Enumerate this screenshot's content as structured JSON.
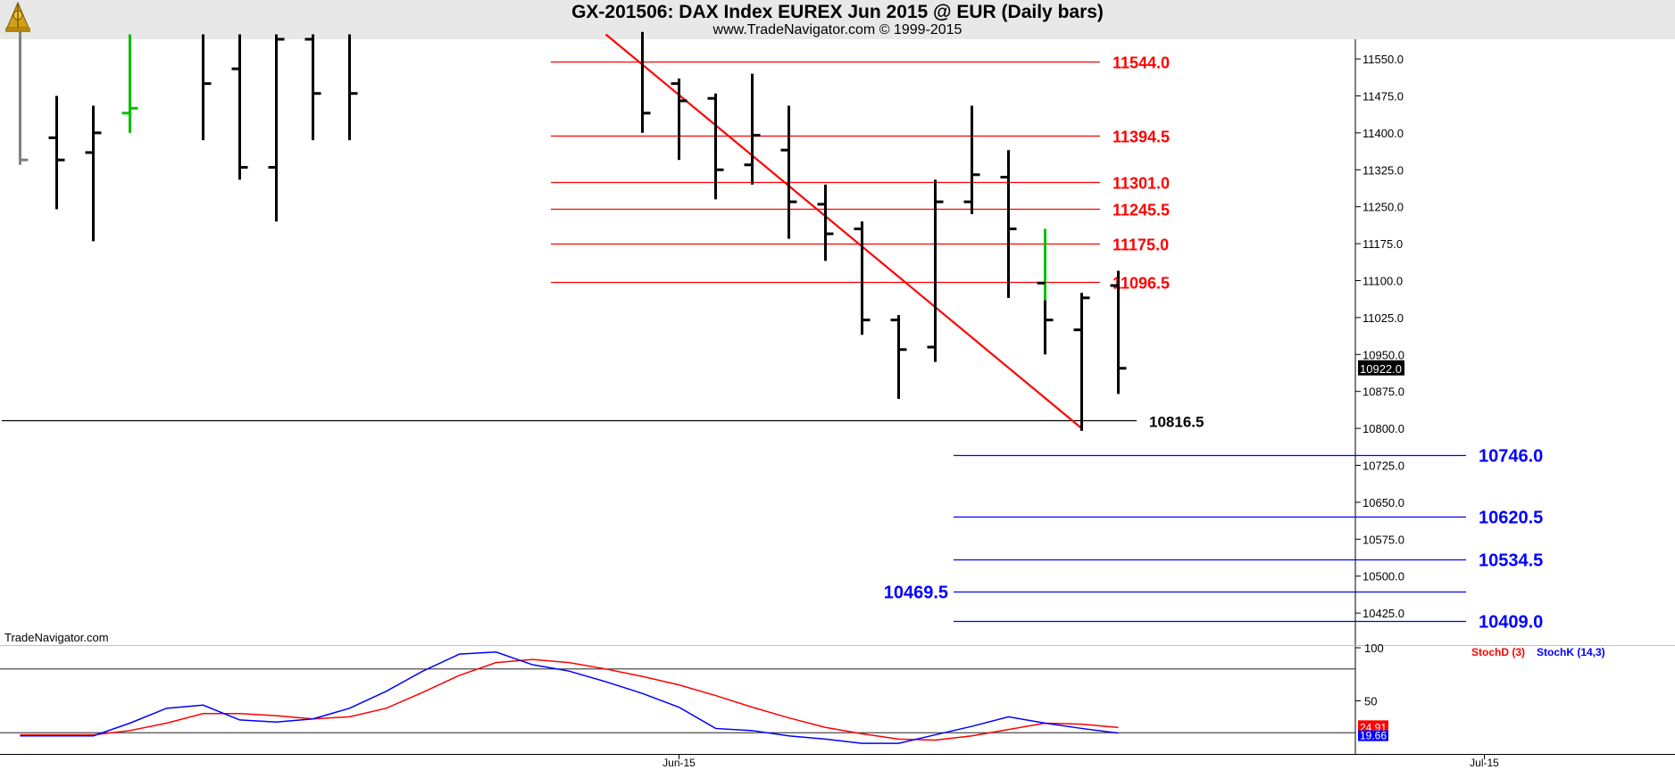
{
  "header": {
    "title": "GX-201506:  DAX Index EUREX Jun 2015 @ EUR  (Daily bars)",
    "subtitle": "www.TradeNavigator.com © 1999-2015"
  },
  "watermark": "TradeNavigator.com",
  "colors": {
    "background": "#ffffff",
    "header_bg": "#e8e8e8",
    "bar": "#000000",
    "up_bar": "#00c000",
    "red_level": "#ff0000",
    "blue_level": "#0000ff",
    "black_level": "#000000",
    "trendline": "#ff0000",
    "stoch_d": "#ff0000",
    "stoch_k": "#0000ff"
  },
  "logo_icon": "trade-navigator-logo-icon",
  "chart_data": [
    {
      "type": "ohlc",
      "ylim": [
        10360,
        11590
      ],
      "y_ticks": [
        "11550.0",
        "11475.0",
        "11400.0",
        "11325.0",
        "11250.0",
        "11175.0",
        "11100.0",
        "11025.0",
        "10950.0",
        "10875.0",
        "10800.0",
        "10725.0",
        "10650.0",
        "10575.0",
        "10500.0",
        "10425.0"
      ],
      "x_labels": [
        {
          "label": "Jun-15",
          "index": 18
        },
        {
          "label": "Jul-15",
          "index": 40
        }
      ],
      "last_price": "10922.0",
      "bars": [
        {
          "i": 0,
          "h": 11605,
          "l": 11335,
          "c": 11345,
          "color": "gray"
        },
        {
          "i": 1,
          "h": 11475,
          "l": 11245,
          "o": 11390,
          "c": 11345
        },
        {
          "i": 2,
          "h": 11455,
          "l": 11180,
          "o": 11360,
          "c": 11400
        },
        {
          "i": 3,
          "h": 11600,
          "l": 11400,
          "o": 11440,
          "c": 11450,
          "color": "green"
        },
        {
          "i": 5,
          "h": 11600,
          "l": 11385,
          "c": 11500
        },
        {
          "i": 6,
          "h": 11600,
          "l": 11305,
          "o": 11530,
          "c": 11330
        },
        {
          "i": 7,
          "h": 11600,
          "l": 11220,
          "o": 11330,
          "c": 11590
        },
        {
          "i": 8,
          "h": 11600,
          "l": 11385,
          "o": 11590,
          "c": 11480
        },
        {
          "i": 9,
          "h": 11600,
          "l": 11385,
          "c": 11480
        },
        {
          "i": 17,
          "h": 11605,
          "l": 11400,
          "c": 11440
        },
        {
          "i": 18,
          "h": 11510,
          "l": 11345,
          "o": 11500,
          "c": 11465
        },
        {
          "i": 19,
          "h": 11480,
          "l": 11265,
          "o": 11470,
          "c": 11325
        },
        {
          "i": 20,
          "h": 11520,
          "l": 11295,
          "o": 11335,
          "c": 11395
        },
        {
          "i": 21,
          "h": 11455,
          "l": 11185,
          "o": 11365,
          "c": 11260
        },
        {
          "i": 22,
          "h": 11295,
          "l": 11140,
          "o": 11255,
          "c": 11195
        },
        {
          "i": 23,
          "h": 11220,
          "l": 10990,
          "o": 11205,
          "c": 11020
        },
        {
          "i": 24,
          "h": 11030,
          "l": 10860,
          "o": 11020,
          "c": 10960
        },
        {
          "i": 25,
          "h": 11305,
          "l": 10935,
          "o": 10965,
          "c": 11260
        },
        {
          "i": 26,
          "h": 11455,
          "l": 11235,
          "o": 11260,
          "c": 11315
        },
        {
          "i": 27,
          "h": 11365,
          "l": 11065,
          "o": 11310,
          "c": 11205
        },
        {
          "i": 28,
          "h": 11205,
          "l": 10950,
          "o": 11095,
          "c": 11020,
          "up_tail_to": 11205
        },
        {
          "i": 29,
          "h": 11075,
          "l": 10795,
          "o": 11000,
          "c": 11065
        },
        {
          "i": 30,
          "h": 11120,
          "l": 10870,
          "o": 11090,
          "c": 10922
        }
      ],
      "trendline": {
        "from": {
          "i": 16,
          "y": 11600
        },
        "to": {
          "i": 29,
          "y": 10800
        }
      },
      "levels": [
        {
          "value": 11544.0,
          "label": "11544.0",
          "color": "red",
          "from_i": 14.5,
          "to_i": 29.5
        },
        {
          "value": 11394.5,
          "label": "11394.5",
          "color": "red",
          "from_i": 14.5,
          "to_i": 29.5
        },
        {
          "value": 11301.0,
          "label": "11301.0",
          "color": "red",
          "from_i": 14.5,
          "to_i": 29.5
        },
        {
          "value": 11245.5,
          "label": "11245.5",
          "color": "red",
          "from_i": 14.5,
          "to_i": 29.5
        },
        {
          "value": 11175.0,
          "label": "11175.0",
          "color": "red",
          "from_i": 14.5,
          "to_i": 29.5
        },
        {
          "value": 11096.5,
          "label": "11096.5",
          "color": "red",
          "from_i": 14.5,
          "to_i": 29.5
        },
        {
          "value": 10816.5,
          "label": "10816.5",
          "color": "black",
          "from_i": -0.5,
          "to_i": 30.5
        },
        {
          "value": 10746.0,
          "label": "10746.0",
          "color": "blue",
          "from_i": 25.5,
          "to_i": 39.5
        },
        {
          "value": 10620.5,
          "label": "10620.5",
          "color": "blue",
          "from_i": 25.5,
          "to_i": 39.5
        },
        {
          "value": 10534.5,
          "label": "10534.5",
          "color": "blue",
          "from_i": 25.5,
          "to_i": 39.5
        },
        {
          "value": 10469.5,
          "label": "10469.5",
          "color": "blue",
          "from_i": 25.5,
          "to_i": 39.5,
          "label_side": "left"
        },
        {
          "value": 10409.0,
          "label": "10409.0",
          "color": "blue",
          "from_i": 25.5,
          "to_i": 39.5
        }
      ]
    },
    {
      "type": "line",
      "ylim": [
        0,
        100
      ],
      "y_ticks": [
        "100",
        "50"
      ],
      "hlines": [
        80,
        20
      ],
      "legend": [
        "StochD (3)",
        "StochK (14,3)"
      ],
      "last_values": {
        "stoch_d": "24.91",
        "stoch_k": "19.66"
      },
      "series": [
        {
          "name": "StochD (3)",
          "color": "red",
          "points": [
            [
              0,
              18
            ],
            [
              2,
              18
            ],
            [
              3,
              22
            ],
            [
              4,
              29
            ],
            [
              5,
              38
            ],
            [
              6,
              38
            ],
            [
              7,
              36
            ],
            [
              8,
              33
            ],
            [
              9,
              35
            ],
            [
              10,
              43
            ],
            [
              11,
              58
            ],
            [
              12,
              74
            ],
            [
              13,
              86
            ],
            [
              14,
              89
            ],
            [
              15,
              86
            ],
            [
              16,
              80
            ],
            [
              17,
              73
            ],
            [
              18,
              65
            ],
            [
              19,
              55
            ],
            [
              20,
              44
            ],
            [
              21,
              34
            ],
            [
              22,
              25
            ],
            [
              23,
              19
            ],
            [
              24,
              14
            ],
            [
              25,
              13
            ],
            [
              26,
              17
            ],
            [
              27,
              23
            ],
            [
              28,
              29
            ],
            [
              29,
              28
            ],
            [
              30,
              24.91
            ]
          ]
        },
        {
          "name": "StochK (14,3)",
          "color": "blue",
          "points": [
            [
              0,
              17
            ],
            [
              2,
              17
            ],
            [
              3,
              29
            ],
            [
              4,
              43
            ],
            [
              5,
              46
            ],
            [
              6,
              32
            ],
            [
              7,
              30
            ],
            [
              8,
              33
            ],
            [
              9,
              43
            ],
            [
              10,
              59
            ],
            [
              11,
              78
            ],
            [
              12,
              94
            ],
            [
              13,
              96
            ],
            [
              14,
              84
            ],
            [
              15,
              78
            ],
            [
              16,
              68
            ],
            [
              17,
              57
            ],
            [
              18,
              44
            ],
            [
              19,
              24
            ],
            [
              20,
              22
            ],
            [
              21,
              17
            ],
            [
              22,
              14
            ],
            [
              23,
              10
            ],
            [
              24,
              10
            ],
            [
              25,
              18
            ],
            [
              26,
              26
            ],
            [
              27,
              35
            ],
            [
              28,
              29
            ],
            [
              29,
              24
            ],
            [
              30,
              19.66
            ]
          ]
        }
      ]
    }
  ]
}
